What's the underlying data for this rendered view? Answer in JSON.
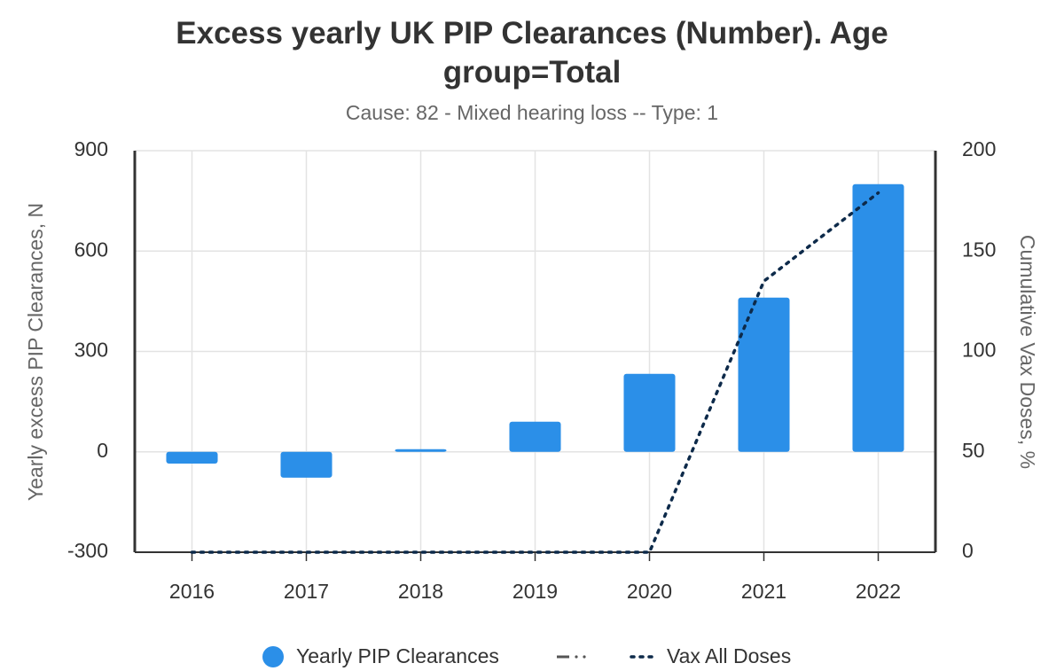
{
  "chart_data": {
    "type": "bar",
    "title": "Excess yearly UK PIP Clearances (Number). Age group=Total",
    "subtitle": "Cause: 82 - Mixed hearing loss -- Type: 1",
    "y_label": "Yearly excess PIP Clearances, N",
    "y2_label": "Cumulative Vax Doses, %",
    "categories": [
      "2016",
      "2017",
      "2018",
      "2019",
      "2020",
      "2021",
      "2022"
    ],
    "series": [
      {
        "name": "Yearly PIP Clearances",
        "type": "bar",
        "color": "#2b8fe8",
        "values": [
          -35,
          -77,
          8,
          90,
          233,
          461,
          800
        ]
      },
      {
        "name": "Vax All Doses",
        "type": "line",
        "axis": "y2",
        "color": "#0d2a4a",
        "values": [
          0,
          0,
          0,
          0,
          0,
          135,
          179
        ]
      }
    ],
    "ylim": [
      -300,
      900
    ],
    "yticks": [
      -300,
      0,
      300,
      600,
      900
    ],
    "y2lim": [
      0,
      200
    ],
    "y2ticks": [
      0,
      50,
      100,
      150,
      200
    ],
    "grid": true,
    "legend": "bottom"
  }
}
